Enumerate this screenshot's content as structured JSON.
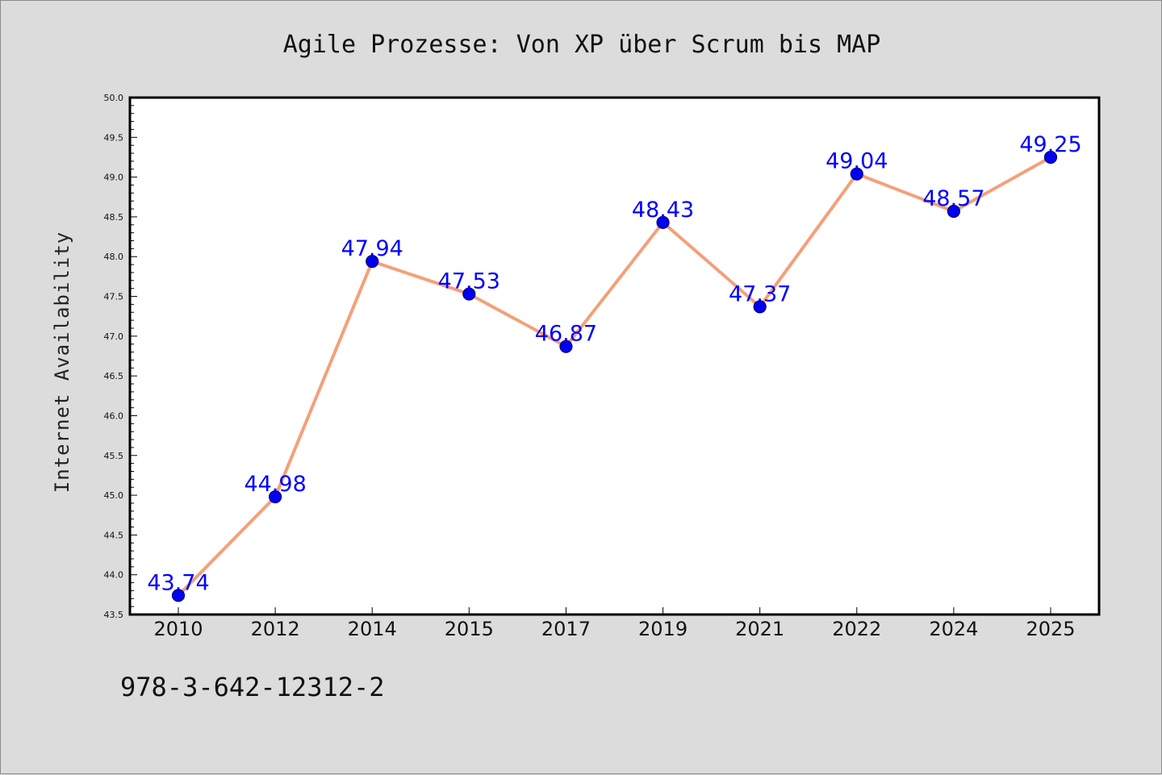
{
  "footer": {
    "isbn": "978-3-642-12312-2"
  },
  "colors": {
    "background": "#dcdcdc",
    "plot_background": "#ffffff",
    "line": "#f4a07a",
    "marker": "#0000ee",
    "marker_edge": "#000080",
    "data_label": "#0000ff",
    "axis": "#000000"
  },
  "chart_data": {
    "type": "line",
    "title": "Agile Prozesse: Von XP über Scrum bis MAP",
    "xlabel": "",
    "ylabel": "Internet Availability",
    "categories": [
      "2010",
      "2012",
      "2014",
      "2015",
      "2017",
      "2019",
      "2021",
      "2022",
      "2024",
      "2025"
    ],
    "series": [
      {
        "values": [
          43.74,
          44.98,
          47.94,
          47.53,
          46.87,
          48.43,
          47.37,
          49.04,
          48.57,
          49.25
        ]
      }
    ],
    "data_labels": [
      "43.74",
      "44.98",
      "47.94",
      "47.53",
      "46.87",
      "48.43",
      "47.37",
      "49.04",
      "48.57",
      "49.25"
    ],
    "ylim": [
      43.5,
      50.0
    ],
    "yticks": [
      "43.5",
      "44.0",
      "44.5",
      "45.0",
      "45.5",
      "46.0",
      "46.5",
      "47.0",
      "47.5",
      "48.0",
      "48.5",
      "49.0",
      "49.5",
      "50.0"
    ],
    "grid": false,
    "legend": "none"
  }
}
